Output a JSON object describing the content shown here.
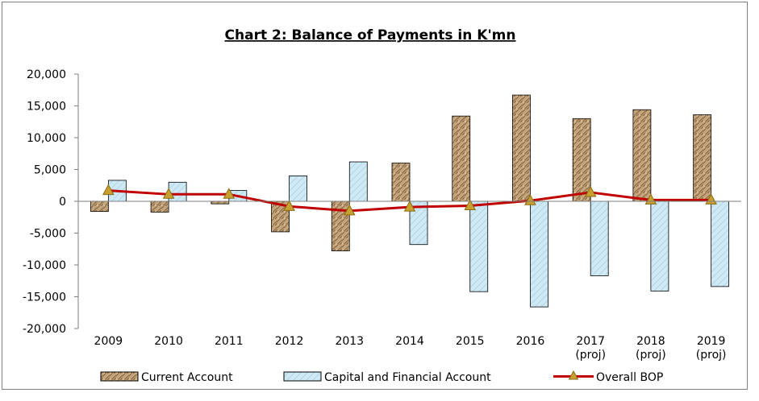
{
  "chart_data": {
    "type": "bar",
    "title": "Chart 2: Balance of Payments in K'mn",
    "xlabel": "",
    "ylabel": "",
    "categories": [
      [
        "2009"
      ],
      [
        "2010"
      ],
      [
        "2011"
      ],
      [
        "2012"
      ],
      [
        "2013"
      ],
      [
        "2014"
      ],
      [
        "2015"
      ],
      [
        "2016"
      ],
      [
        "2017",
        "(proj)"
      ],
      [
        "2018",
        "(proj)"
      ],
      [
        "2019",
        "(proj)"
      ]
    ],
    "y_ticks": [
      "20,000",
      "15,000",
      "10,000",
      "5,000",
      "0",
      "-5,000",
      "-10,000",
      "-15,000",
      "-20,000"
    ],
    "ylim": [
      -20000,
      20000
    ],
    "grid": false,
    "legend_position": "bottom",
    "series": [
      {
        "name": "Current Account",
        "kind": "bar",
        "color": "#b89a72",
        "values": [
          -1600,
          -1700,
          -400,
          -4800,
          -7800,
          6000,
          13400,
          16700,
          13000,
          14400,
          13600
        ]
      },
      {
        "name": "Capital and Financial Account",
        "kind": "bar",
        "color": "#c9e6f2",
        "values": [
          3300,
          3000,
          1700,
          4000,
          6200,
          -6800,
          -14200,
          -16600,
          -11700,
          -14100,
          -13400
        ]
      },
      {
        "name": "Overall BOP",
        "kind": "line",
        "color": "#c00000",
        "marker_color": "#c8a032",
        "values": [
          1700,
          1100,
          1100,
          -800,
          -1500,
          -900,
          -700,
          100,
          1400,
          200,
          200
        ]
      }
    ]
  }
}
